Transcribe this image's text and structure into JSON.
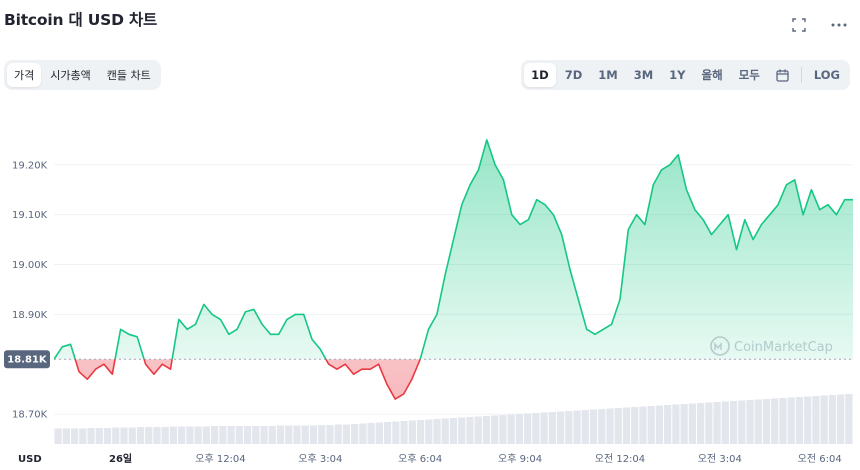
{
  "header": {
    "title": "Bitcoin 대 USD 차트",
    "fullscreen_icon": "fullscreen-icon",
    "more_icon": "more-icon"
  },
  "view_tabs": [
    {
      "label": "가격",
      "active": true
    },
    {
      "label": "시가총액",
      "active": false
    },
    {
      "label": "캔들 차트",
      "active": false
    }
  ],
  "range_tabs": [
    {
      "label": "1D",
      "active": true
    },
    {
      "label": "7D",
      "active": false
    },
    {
      "label": "1M",
      "active": false
    },
    {
      "label": "3M",
      "active": false
    },
    {
      "label": "1Y",
      "active": false
    },
    {
      "label": "올해",
      "active": false
    },
    {
      "label": "모두",
      "active": false
    }
  ],
  "calendar_icon": "calendar-icon",
  "log_label": "LOG",
  "watermark": "CoinMarketCap",
  "colors": {
    "up": "#16c784",
    "down": "#ea3943",
    "volume": "#e3e6ec",
    "grid": "#eff2f5",
    "ref_label_bg": "#58667e"
  },
  "chart_data": {
    "type": "area",
    "currency_label": "USD",
    "reference_price": 18810,
    "reference_label": "18.81K",
    "ylim": [
      18640,
      19330
    ],
    "y_ticks": [
      {
        "value": 19200,
        "label": "19.20K"
      },
      {
        "value": 19100,
        "label": "19.10K"
      },
      {
        "value": 19000,
        "label": "19.00K"
      },
      {
        "value": 18900,
        "label": "18.90K"
      },
      {
        "value": 18700,
        "label": "18.70K"
      }
    ],
    "x_range": [
      0,
      96
    ],
    "x_ticks": [
      {
        "x": 8,
        "label": "26일",
        "bold": true
      },
      {
        "x": 20,
        "label": "오후 12:04",
        "bold": false
      },
      {
        "x": 32,
        "label": "오후 3:04",
        "bold": false
      },
      {
        "x": 44,
        "label": "오후 6:04",
        "bold": false
      },
      {
        "x": 56,
        "label": "오후 9:04",
        "bold": false
      },
      {
        "x": 68,
        "label": "오전 12:04",
        "bold": false
      },
      {
        "x": 80,
        "label": "오전 3:04",
        "bold": false
      },
      {
        "x": 92,
        "label": "오전 6:04",
        "bold": false
      }
    ],
    "series": [
      {
        "values": [
          18810,
          18835,
          18840,
          18785,
          18770,
          18790,
          18800,
          18780,
          18870,
          18860,
          18855,
          18800,
          18780,
          18800,
          18790,
          18890,
          18870,
          18880,
          18920,
          18900,
          18890,
          18860,
          18870,
          18905,
          18910,
          18880,
          18860,
          18860,
          18890,
          18900,
          18900,
          18850,
          18830,
          18800,
          18790,
          18800,
          18780,
          18790,
          18790,
          18800,
          18760,
          18730,
          18740,
          18770,
          18810,
          18870,
          18900,
          18980,
          19050,
          19120,
          19160,
          19190,
          19250,
          19200,
          19170,
          19100,
          19080,
          19090,
          19130,
          19120,
          19100,
          19060,
          18990,
          18930,
          18870,
          18860,
          18870,
          18880,
          18930,
          19070,
          19100,
          19080,
          19160,
          19190,
          19200,
          19220,
          19150,
          19110,
          19090,
          19060,
          19080,
          19100,
          19030,
          19090,
          19050,
          19080,
          19100,
          19120,
          19160,
          19170,
          19100,
          19150,
          19110,
          19120,
          19100,
          19130,
          19130
        ]
      }
    ],
    "volume": {
      "values": [
        0.31,
        0.31,
        0.31,
        0.31,
        0.32,
        0.32,
        0.32,
        0.33,
        0.33,
        0.33,
        0.34,
        0.34,
        0.34,
        0.34,
        0.35,
        0.35,
        0.35,
        0.35,
        0.35,
        0.36,
        0.36,
        0.36,
        0.36,
        0.36,
        0.36,
        0.36,
        0.36,
        0.37,
        0.37,
        0.37,
        0.37,
        0.37,
        0.38,
        0.38,
        0.39,
        0.39,
        0.4,
        0.41,
        0.42,
        0.43,
        0.44,
        0.45,
        0.46,
        0.47,
        0.48,
        0.49,
        0.5,
        0.51,
        0.52,
        0.53,
        0.54,
        0.55,
        0.56,
        0.57,
        0.58,
        0.59,
        0.6,
        0.61,
        0.62,
        0.63,
        0.64,
        0.65,
        0.66,
        0.67,
        0.68,
        0.69,
        0.7,
        0.71,
        0.72,
        0.73,
        0.74,
        0.75,
        0.76,
        0.77,
        0.78,
        0.79,
        0.8,
        0.81,
        0.82,
        0.83,
        0.84,
        0.85,
        0.86,
        0.87,
        0.88,
        0.89,
        0.9,
        0.91,
        0.92,
        0.93,
        0.94,
        0.95,
        0.96,
        0.97,
        0.98,
        0.99,
        1.0
      ]
    }
  }
}
